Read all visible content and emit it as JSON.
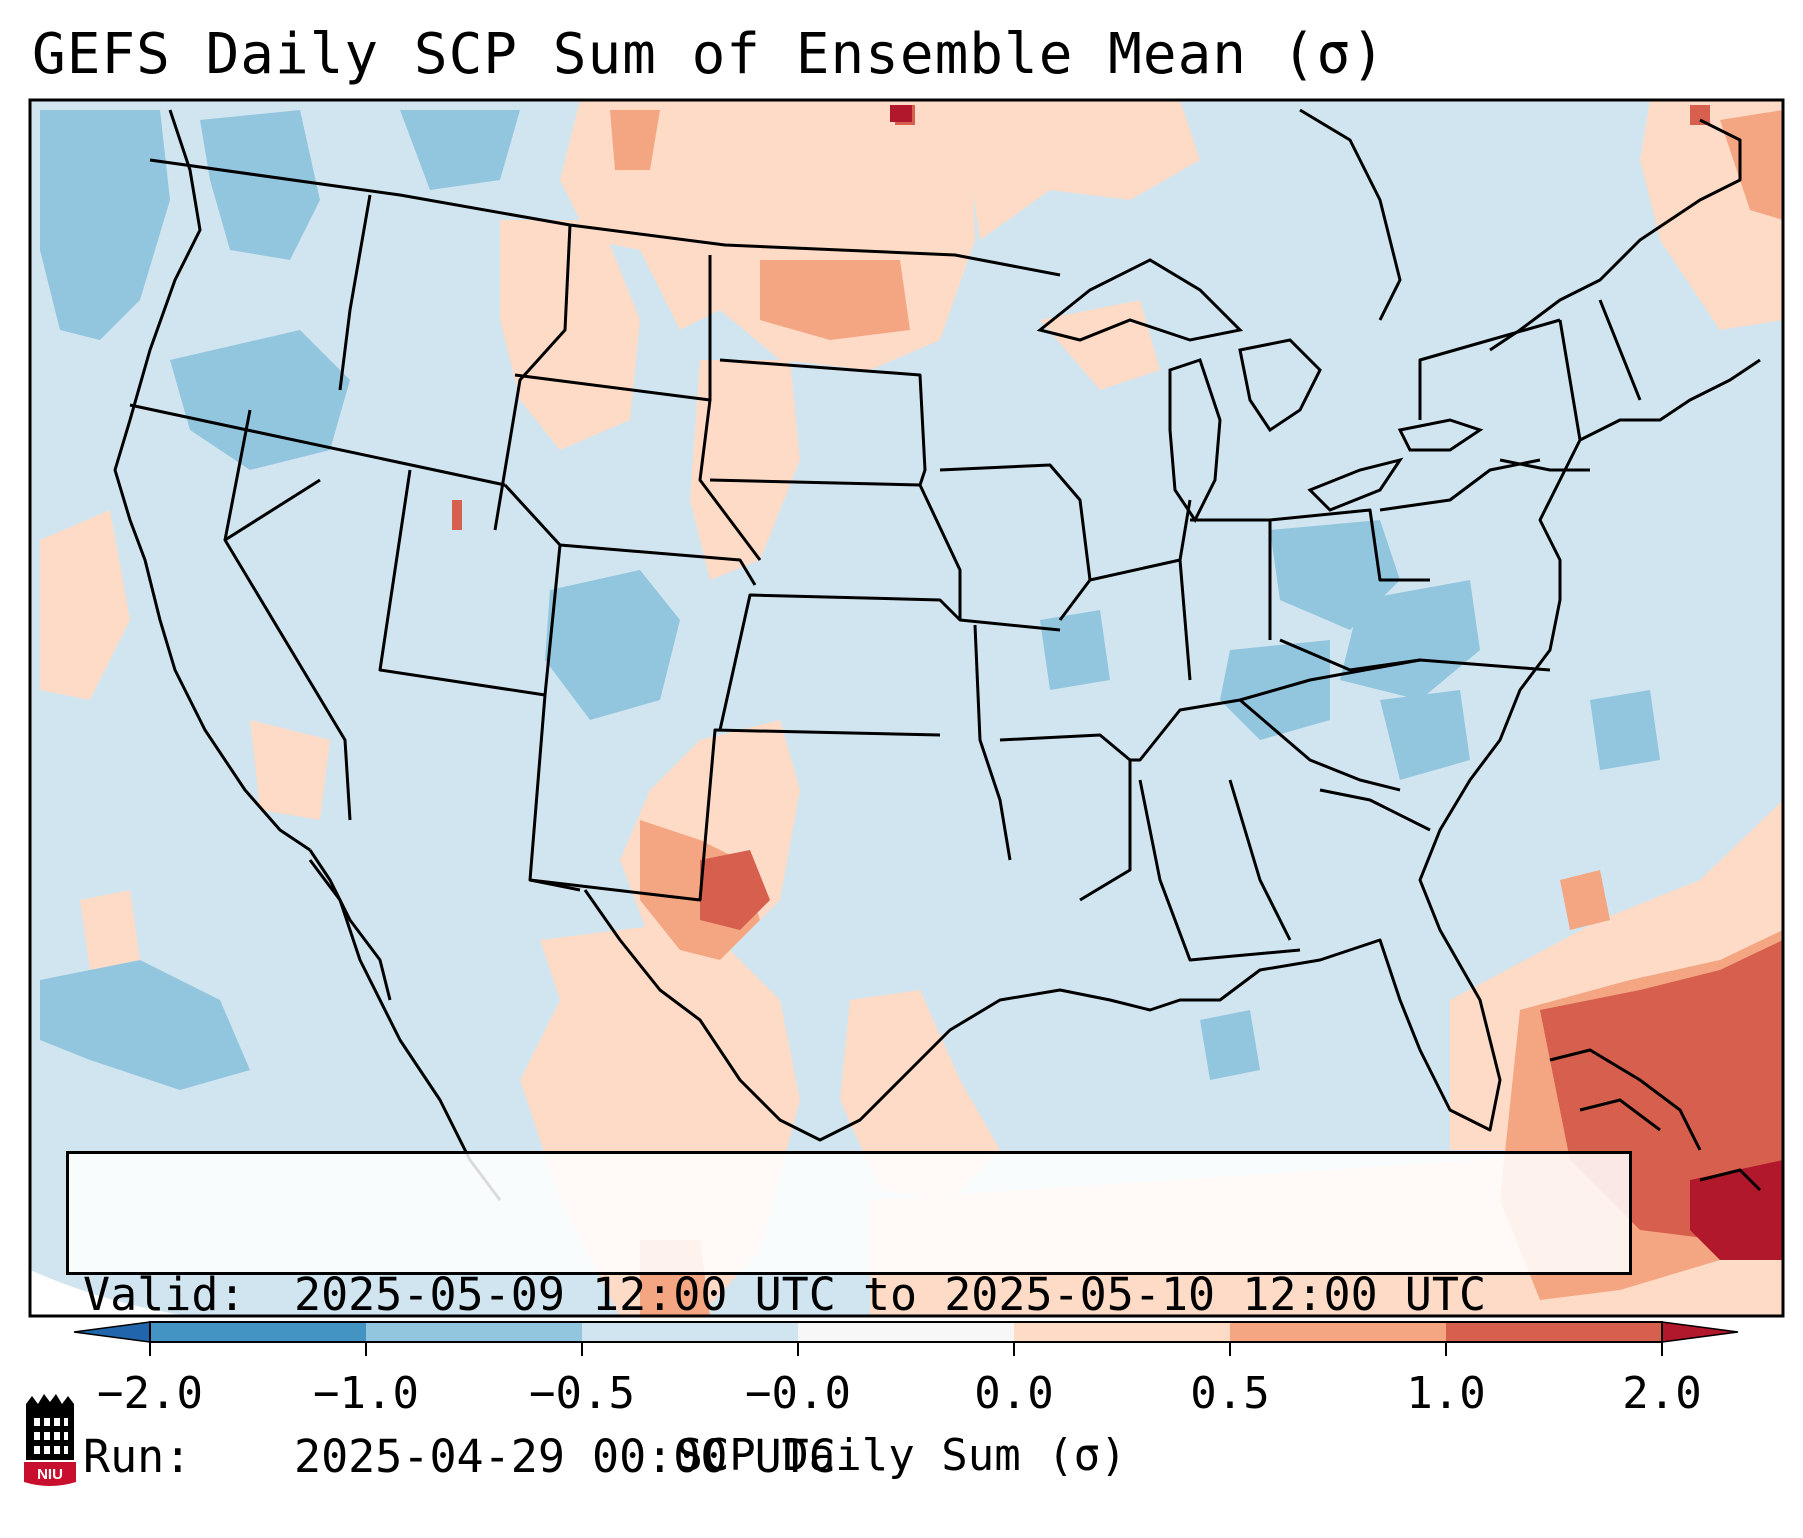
{
  "title": "GEFS Daily SCP Sum of Ensemble Mean (σ)",
  "info": {
    "valid_label": "Valid:",
    "valid_value": "2025-05-09 12:00 UTC to 2025-05-10 12:00 UTC",
    "run_label": "Run:",
    "run_value": "2025-04-29 00:00 UTC"
  },
  "colorbar": {
    "label": "SCP Daily Sum (σ)",
    "ticks": [
      "−2.0",
      "−1.0",
      "−0.5",
      "−0.0",
      "0.0",
      "0.5",
      "1.0",
      "2.0"
    ],
    "bin_colors": [
      "#4393c3",
      "#92c5de",
      "#d1e5f0",
      "#f7f7f7",
      "#fddbc7",
      "#f4a582",
      "#d6604d"
    ],
    "extend_low_color": "#2166ac",
    "extend_high_color": "#b2182b"
  },
  "map": {
    "projection": "lambert-conformal",
    "region": "CONUS",
    "background_color": "#d1e5f0",
    "borders_color": "#000000"
  },
  "logo": {
    "text": "NIU",
    "name": "niu-logo"
  }
}
